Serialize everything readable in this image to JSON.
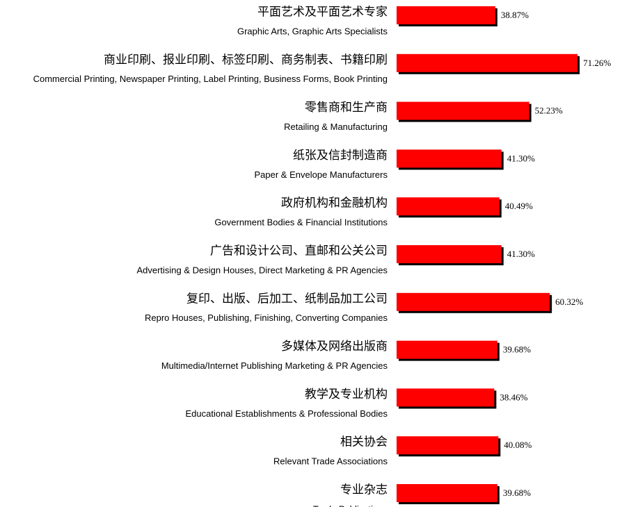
{
  "chart_data": {
    "type": "bar",
    "orientation": "horizontal",
    "color": "#ff0000",
    "shadow_color": "#000000",
    "categories": [
      "平面艺术及平面艺术专家",
      "商业印刷、报业印刷、标签印刷、商务制表、书籍印刷",
      "零售商和生产商",
      "纸张及信封制造商",
      "政府机构和金融机构",
      "广告和设计公司、直邮和公关公司",
      "复印、出版、后加工、纸制品加工公司",
      "多媒体及网络出版商",
      "教学及专业机构",
      "相关协会",
      "专业杂志"
    ],
    "category_translations": [
      "Graphic Arts, Graphic Arts Specialists",
      "Commercial Printing, Newspaper Printing, Label Printing, Business Forms, Book Printing",
      "Retailing & Manufacturing",
      "Paper & Envelope Manufacturers",
      "Government Bodies & Financial Institutions",
      "Advertising & Design Houses, Direct Marketing & PR Agencies",
      "Repro Houses, Publishing, Finishing, Converting Companies",
      "Multimedia/Internet Publishing Marketing & PR Agencies",
      "Educational Establishments & Professional Bodies",
      "Relevant Trade Associations",
      "Trade Publications"
    ],
    "values": [
      38.87,
      71.26,
      52.23,
      41.3,
      40.49,
      41.3,
      60.32,
      39.68,
      38.46,
      40.08,
      39.68
    ],
    "value_labels": [
      "38.87%",
      "71.26%",
      "52.23%",
      "41.30%",
      "40.49%",
      "41.30%",
      "60.32%",
      "39.68%",
      "38.46%",
      "40.08%",
      "39.68%"
    ]
  }
}
